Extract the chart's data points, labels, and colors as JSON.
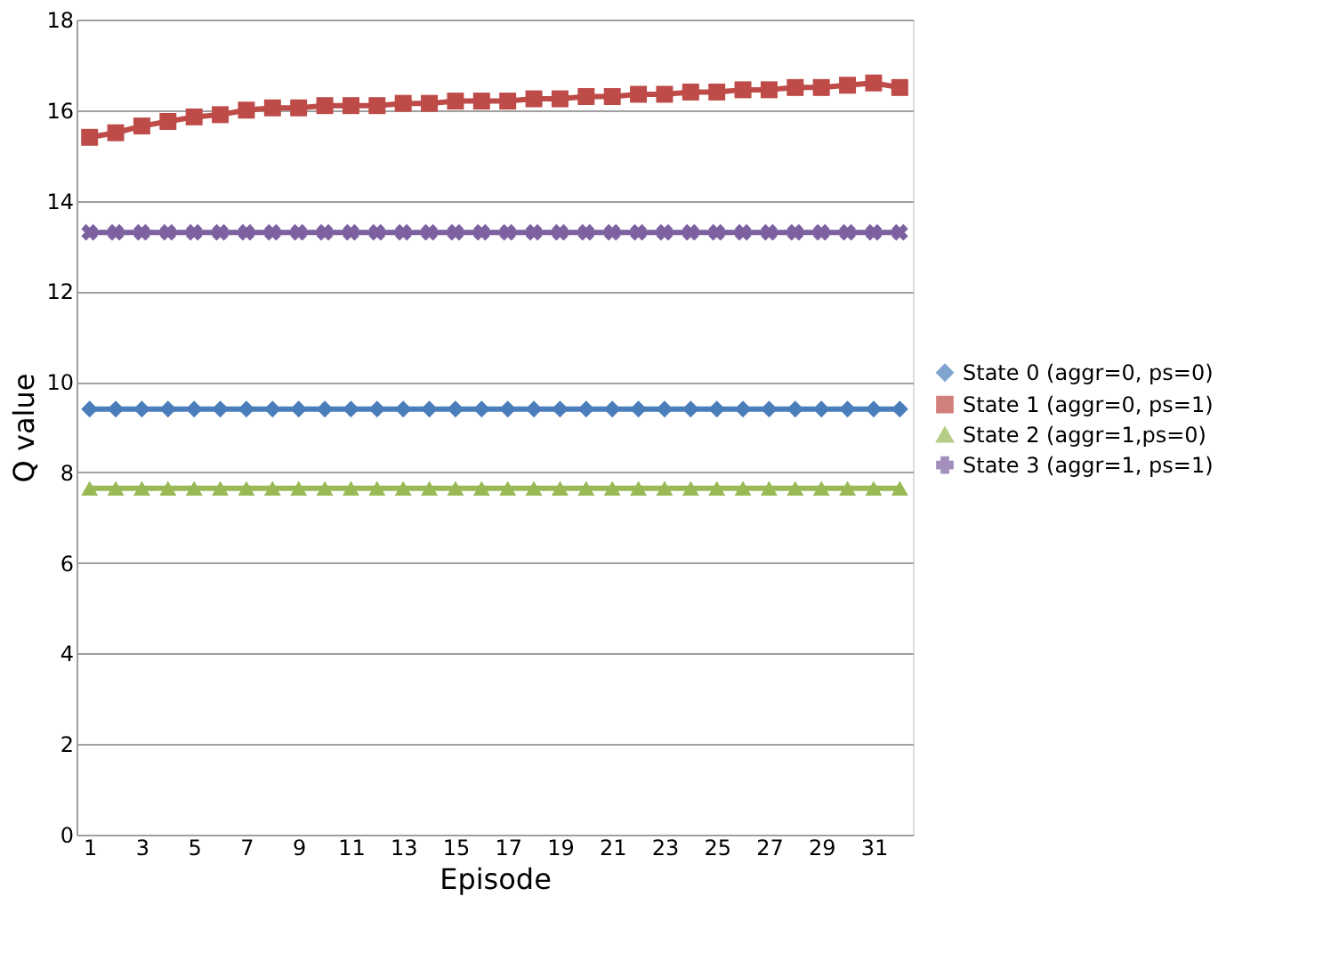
{
  "chart_data": {
    "type": "line",
    "xlabel": "Episode",
    "ylabel": "Q value",
    "x": [
      1,
      2,
      3,
      4,
      5,
      6,
      7,
      8,
      9,
      10,
      11,
      12,
      13,
      14,
      15,
      16,
      17,
      18,
      19,
      20,
      21,
      22,
      23,
      24,
      25,
      26,
      27,
      28,
      29,
      30,
      31,
      32
    ],
    "xlim": [
      0.5,
      32.5
    ],
    "xticks": [
      1,
      3,
      5,
      7,
      9,
      11,
      13,
      15,
      17,
      19,
      21,
      23,
      25,
      27,
      29,
      31
    ],
    "ylim": [
      0,
      18
    ],
    "yticks": [
      0,
      2,
      4,
      6,
      8,
      10,
      12,
      14,
      16,
      18
    ],
    "grid": "y",
    "legend": "right",
    "series": [
      {
        "name": "State 0 (aggr=0, ps=0)",
        "color": "#4a7ebb",
        "marker": "diamond",
        "values": [
          9.4,
          9.4,
          9.4,
          9.4,
          9.4,
          9.4,
          9.4,
          9.4,
          9.4,
          9.4,
          9.4,
          9.4,
          9.4,
          9.4,
          9.4,
          9.4,
          9.4,
          9.4,
          9.4,
          9.4,
          9.4,
          9.4,
          9.4,
          9.4,
          9.4,
          9.4,
          9.4,
          9.4,
          9.4,
          9.4,
          9.4,
          9.4
        ]
      },
      {
        "name": "State 1 (aggr=0, ps=1)",
        "color": "#be4b48",
        "marker": "square",
        "values": [
          15.4,
          15.5,
          15.65,
          15.75,
          15.85,
          15.9,
          16.0,
          16.05,
          16.05,
          16.1,
          16.1,
          16.1,
          16.15,
          16.15,
          16.2,
          16.2,
          16.2,
          16.25,
          16.25,
          16.3,
          16.3,
          16.35,
          16.35,
          16.4,
          16.4,
          16.45,
          16.45,
          16.5,
          16.5,
          16.55,
          16.6,
          16.5
        ]
      },
      {
        "name": "State 2 (aggr=1,ps=0)",
        "color": "#98b954",
        "marker": "triangle",
        "values": [
          7.65,
          7.65,
          7.65,
          7.65,
          7.65,
          7.65,
          7.65,
          7.65,
          7.65,
          7.65,
          7.65,
          7.65,
          7.65,
          7.65,
          7.65,
          7.65,
          7.65,
          7.65,
          7.65,
          7.65,
          7.65,
          7.65,
          7.65,
          7.65,
          7.65,
          7.65,
          7.65,
          7.65,
          7.65,
          7.65,
          7.65,
          7.65
        ]
      },
      {
        "name": "State 3 (aggr=1, ps=1)",
        "color": "#7d60a0",
        "marker": "cross",
        "values": [
          13.3,
          13.3,
          13.3,
          13.3,
          13.3,
          13.3,
          13.3,
          13.3,
          13.3,
          13.3,
          13.3,
          13.3,
          13.3,
          13.3,
          13.3,
          13.3,
          13.3,
          13.3,
          13.3,
          13.3,
          13.3,
          13.3,
          13.3,
          13.3,
          13.3,
          13.3,
          13.3,
          13.3,
          13.3,
          13.3,
          13.3,
          13.3
        ]
      }
    ]
  }
}
